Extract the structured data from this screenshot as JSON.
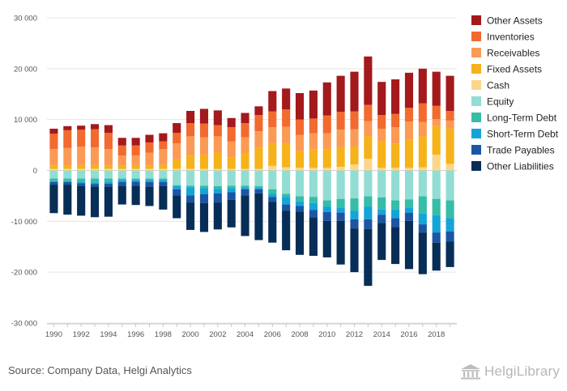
{
  "source": "Source: Company Data, Helgi Analytics",
  "brand": {
    "name": "HelgiLibrary",
    "icon": "helgi-library-building-icon"
  },
  "chart_data": {
    "type": "bar",
    "stacked": true,
    "title": "",
    "xlabel": "",
    "ylabel": "",
    "ylim": [
      -30000,
      30000
    ],
    "yticks": [
      -30000,
      -20000,
      -10000,
      0,
      10000,
      20000,
      30000
    ],
    "ytick_labels": [
      "-30 000",
      "-20 000",
      "-10 000",
      "0",
      "10 000",
      "20 000",
      "30 000"
    ],
    "grid": true,
    "legend_position": "right",
    "categories": [
      "1990",
      "1991",
      "1992",
      "1993",
      "1994",
      "1995",
      "1996",
      "1997",
      "1998",
      "1999",
      "2000",
      "2001",
      "2002",
      "2003",
      "2004",
      "2005",
      "2006",
      "2007",
      "2008",
      "2009",
      "2010",
      "2011",
      "2012",
      "2013",
      "2014",
      "2015",
      "2016",
      "2017",
      "2018",
      "2019"
    ],
    "xtick_labels": [
      "1990",
      "",
      "1992",
      "",
      "1994",
      "",
      "1996",
      "",
      "1998",
      "",
      "2000",
      "",
      "2002",
      "",
      "2004",
      "",
      "2006",
      "",
      "2008",
      "",
      "2010",
      "",
      "2012",
      "",
      "2014",
      "",
      "2016",
      "",
      "2018",
      ""
    ],
    "assets_series": [
      {
        "name": "Cash",
        "color": "#fdd68c",
        "values": [
          300,
          300,
          300,
          300,
          300,
          300,
          300,
          300,
          300,
          300,
          300,
          300,
          300,
          300,
          300,
          300,
          900,
          600,
          500,
          500,
          500,
          700,
          1200,
          2300,
          500,
          500,
          500,
          600,
          3100,
          1300
        ]
      },
      {
        "name": "Fixed Assets",
        "color": "#f5b21a",
        "values": [
          700,
          600,
          800,
          800,
          700,
          600,
          600,
          700,
          800,
          1800,
          2600,
          2700,
          3200,
          2300,
          3200,
          4200,
          4300,
          4800,
          3300,
          3700,
          3700,
          3900,
          3500,
          4400,
          5300,
          4800,
          5500,
          6100,
          5600,
          6900
        ]
      },
      {
        "name": "Receivables",
        "color": "#fb9a55",
        "values": [
          3200,
          3500,
          3600,
          3400,
          3200,
          2000,
          2000,
          2500,
          3100,
          3200,
          3800,
          3500,
          3200,
          3100,
          3000,
          3200,
          3300,
          3200,
          3200,
          3100,
          3100,
          3400,
          3400,
          3000,
          2400,
          3200,
          3600,
          2800,
          1400,
          1600
        ]
      },
      {
        "name": "Inventories",
        "color": "#f26a2e",
        "values": [
          3000,
          3500,
          3300,
          3600,
          3200,
          2000,
          2000,
          2000,
          1500,
          2100,
          2600,
          2700,
          2200,
          2800,
          2800,
          3200,
          3100,
          3400,
          3000,
          2900,
          3500,
          3500,
          3500,
          3200,
          2700,
          2600,
          2700,
          3700,
          2600,
          1900
        ]
      },
      {
        "name": "Other Assets",
        "color": "#a3191c",
        "values": [
          1000,
          800,
          800,
          1000,
          1500,
          1500,
          1500,
          1500,
          1600,
          1900,
          2400,
          2900,
          2900,
          1800,
          2000,
          1700,
          4000,
          4100,
          5200,
          5500,
          6500,
          7100,
          7800,
          9500,
          6500,
          6800,
          6900,
          6800,
          6700,
          6900
        ]
      }
    ],
    "liabilities_series": [
      {
        "name": "Equity",
        "color": "#92ddd3",
        "values": [
          -1600,
          -1600,
          -1600,
          -1600,
          -1600,
          -1600,
          -1600,
          -1600,
          -1600,
          -2900,
          -3000,
          -3000,
          -3100,
          -3000,
          -3000,
          -3100,
          -3700,
          -4600,
          -5100,
          -5200,
          -5900,
          -5600,
          -5500,
          -5100,
          -5300,
          -5900,
          -5700,
          -5100,
          -5600,
          -5900
        ]
      },
      {
        "name": "Long-Term Debt",
        "color": "#37bca7",
        "values": [
          -500,
          -500,
          -600,
          -800,
          -600,
          -300,
          -300,
          -300,
          -300,
          -200,
          -300,
          -500,
          -500,
          -500,
          -300,
          -300,
          -900,
          -600,
          -1000,
          -1200,
          -1200,
          -1800,
          -2400,
          -2000,
          -2400,
          -1800,
          -1600,
          -3400,
          -3200,
          -3500
        ]
      },
      {
        "name": "Short-Term Debt",
        "color": "#13a5d8",
        "values": [
          -200,
          -200,
          -300,
          -300,
          -400,
          -400,
          -300,
          -400,
          -400,
          -600,
          -1600,
          -1200,
          -900,
          -800,
          -400,
          -300,
          -600,
          -1500,
          -900,
          -1400,
          -1100,
          -900,
          -1700,
          -2500,
          -1000,
          -1700,
          -1000,
          -2100,
          -3400,
          -2600
        ]
      },
      {
        "name": "Trade Payables",
        "color": "#1b56a5",
        "values": [
          -500,
          -500,
          -600,
          -500,
          -600,
          -800,
          -800,
          -900,
          -800,
          -1200,
          -1400,
          -1700,
          -1800,
          -1500,
          -1200,
          -800,
          -1000,
          -1200,
          -1100,
          -1400,
          -1700,
          -1600,
          -1800,
          -1900,
          -1600,
          -1700,
          -1600,
          -1600,
          -2000,
          -2000
        ]
      },
      {
        "name": "Other Liabilities",
        "color": "#072e57",
        "values": [
          -5600,
          -5900,
          -5800,
          -6000,
          -5900,
          -3600,
          -3800,
          -3800,
          -4600,
          -4500,
          -5400,
          -5700,
          -5300,
          -5400,
          -8000,
          -9200,
          -8000,
          -7800,
          -8500,
          -7600,
          -7200,
          -8600,
          -8600,
          -11200,
          -7300,
          -7300,
          -9500,
          -8200,
          -5500,
          -5000
        ]
      }
    ],
    "legend": [
      "Other Assets",
      "Inventories",
      "Receivables",
      "Fixed Assets",
      "Cash",
      "Equity",
      "Long-Term Debt",
      "Short-Term Debt",
      "Trade Payables",
      "Other Liabilities"
    ]
  }
}
